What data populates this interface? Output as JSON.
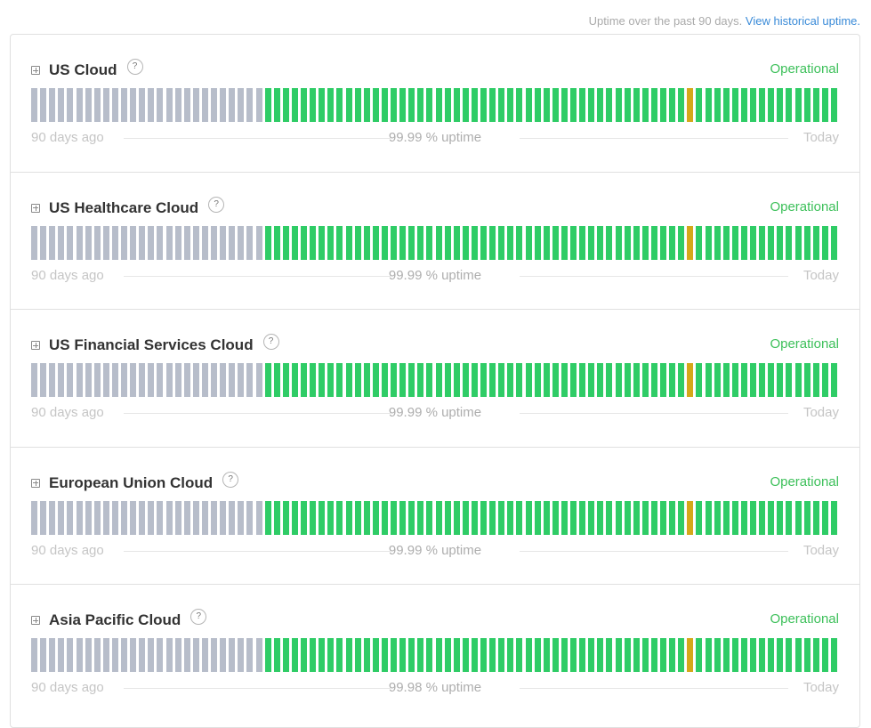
{
  "header": {
    "note": "Uptime over the past 90 days.",
    "link": "View historical uptime."
  },
  "bar_legend": {
    "start": "90 days ago",
    "end": "Today"
  },
  "bar_pattern": {
    "total_days": 90,
    "nodata_days": 26,
    "incident_day_index": 73
  },
  "colors": {
    "operational": "#2fcc66",
    "minor": "#d4a81a",
    "no_data": "#b7bdca",
    "status_text": "#3dc05a"
  },
  "components": [
    {
      "name": "US Cloud",
      "status": "Operational",
      "uptime": "99.99 % uptime"
    },
    {
      "name": "US Healthcare Cloud",
      "status": "Operational",
      "uptime": "99.99 % uptime"
    },
    {
      "name": "US Financial Services Cloud",
      "status": "Operational",
      "uptime": "99.99 % uptime"
    },
    {
      "name": "European Union Cloud",
      "status": "Operational",
      "uptime": "99.99 % uptime"
    },
    {
      "name": "Asia Pacific Cloud",
      "status": "Operational",
      "uptime": "99.98 % uptime"
    }
  ]
}
